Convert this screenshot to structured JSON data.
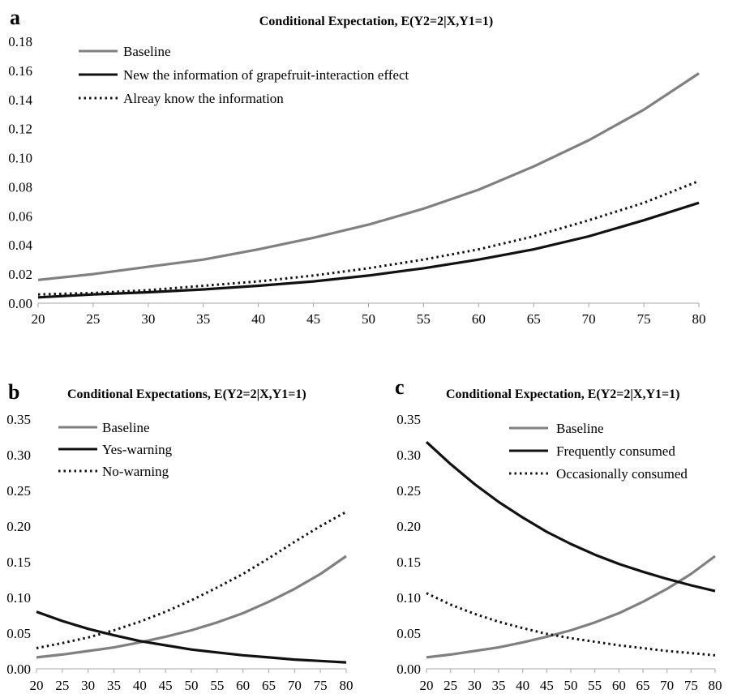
{
  "chart_data": [
    {
      "panel": "a",
      "type": "line",
      "title": "Conditional Expectation, E(Y2=2|X,Y1=1)",
      "x": [
        20,
        25,
        30,
        35,
        40,
        45,
        50,
        55,
        60,
        65,
        70,
        75,
        80
      ],
      "ylim": [
        0,
        0.18
      ],
      "yticks": [
        0.0,
        0.02,
        0.04,
        0.06,
        0.08,
        0.1,
        0.12,
        0.14,
        0.16,
        0.18
      ],
      "ytick_labels": [
        "0.00",
        "0.02",
        "0.04",
        "0.06",
        "0.08",
        "0.10",
        "0.12",
        "0.14",
        "0.16",
        "0.18"
      ],
      "legend_position": "top-left",
      "series": [
        {
          "name": "Baseline",
          "color": "#808080",
          "style": "solid",
          "values": [
            0.016,
            0.02,
            0.025,
            0.03,
            0.037,
            0.045,
            0.054,
            0.065,
            0.078,
            0.094,
            0.112,
            0.133,
            0.158
          ]
        },
        {
          "name": "New the information of grapefruit-interaction effect",
          "color": "#111111",
          "style": "solid",
          "values": [
            0.004,
            0.006,
            0.0075,
            0.0095,
            0.012,
            0.015,
            0.019,
            0.024,
            0.03,
            0.037,
            0.046,
            0.057,
            0.069
          ]
        },
        {
          "name": "Alreay know the information",
          "color": "#111111",
          "style": "dotted",
          "values": [
            0.006,
            0.007,
            0.009,
            0.012,
            0.015,
            0.019,
            0.024,
            0.03,
            0.037,
            0.046,
            0.057,
            0.069,
            0.084
          ]
        }
      ]
    },
    {
      "panel": "b",
      "type": "line",
      "title": "Conditional Expectations, E(Y2=2|X,Y1=1)",
      "x": [
        20,
        25,
        30,
        35,
        40,
        45,
        50,
        55,
        60,
        65,
        70,
        75,
        80
      ],
      "ylim": [
        0,
        0.35
      ],
      "yticks": [
        0.0,
        0.05,
        0.1,
        0.15,
        0.2,
        0.25,
        0.3,
        0.35
      ],
      "ytick_labels": [
        "0.00",
        "0.05",
        "0.10",
        "0.15",
        "0.20",
        "0.25",
        "0.30",
        "0.35"
      ],
      "legend_position": "top-left",
      "series": [
        {
          "name": "Baseline",
          "color": "#808080",
          "style": "solid",
          "values": [
            0.016,
            0.02,
            0.025,
            0.03,
            0.037,
            0.045,
            0.054,
            0.065,
            0.078,
            0.094,
            0.112,
            0.133,
            0.158
          ]
        },
        {
          "name": "Yes-warning",
          "color": "#111111",
          "style": "solid",
          "values": [
            0.08,
            0.067,
            0.056,
            0.047,
            0.039,
            0.033,
            0.027,
            0.023,
            0.019,
            0.016,
            0.013,
            0.011,
            0.009
          ]
        },
        {
          "name": "No-warning",
          "color": "#111111",
          "style": "dotted",
          "values": [
            0.029,
            0.036,
            0.044,
            0.054,
            0.066,
            0.08,
            0.096,
            0.114,
            0.133,
            0.155,
            0.178,
            0.2,
            0.22
          ]
        }
      ]
    },
    {
      "panel": "c",
      "type": "line",
      "title": "Conditional Expectation, E(Y2=2|X,Y1=1)",
      "x": [
        20,
        25,
        30,
        35,
        40,
        45,
        50,
        55,
        60,
        65,
        70,
        75,
        80
      ],
      "ylim": [
        0,
        0.35
      ],
      "yticks": [
        0.0,
        0.05,
        0.1,
        0.15,
        0.2,
        0.25,
        0.3,
        0.35
      ],
      "ytick_labels": [
        "0.00",
        "0.05",
        "0.10",
        "0.15",
        "0.20",
        "0.25",
        "0.30",
        "0.35"
      ],
      "legend_position": "top-right",
      "series": [
        {
          "name": "Baseline",
          "color": "#808080",
          "style": "solid",
          "values": [
            0.016,
            0.02,
            0.025,
            0.03,
            0.037,
            0.045,
            0.054,
            0.065,
            0.078,
            0.094,
            0.112,
            0.133,
            0.158
          ]
        },
        {
          "name": "Frequently consumed",
          "color": "#111111",
          "style": "solid",
          "values": [
            0.318,
            0.287,
            0.259,
            0.234,
            0.212,
            0.192,
            0.175,
            0.16,
            0.147,
            0.136,
            0.126,
            0.117,
            0.109
          ]
        },
        {
          "name": "Occasionally consumed",
          "color": "#111111",
          "style": "dotted",
          "values": [
            0.106,
            0.09,
            0.077,
            0.066,
            0.057,
            0.049,
            0.043,
            0.038,
            0.033,
            0.029,
            0.025,
            0.022,
            0.019
          ]
        }
      ]
    }
  ]
}
